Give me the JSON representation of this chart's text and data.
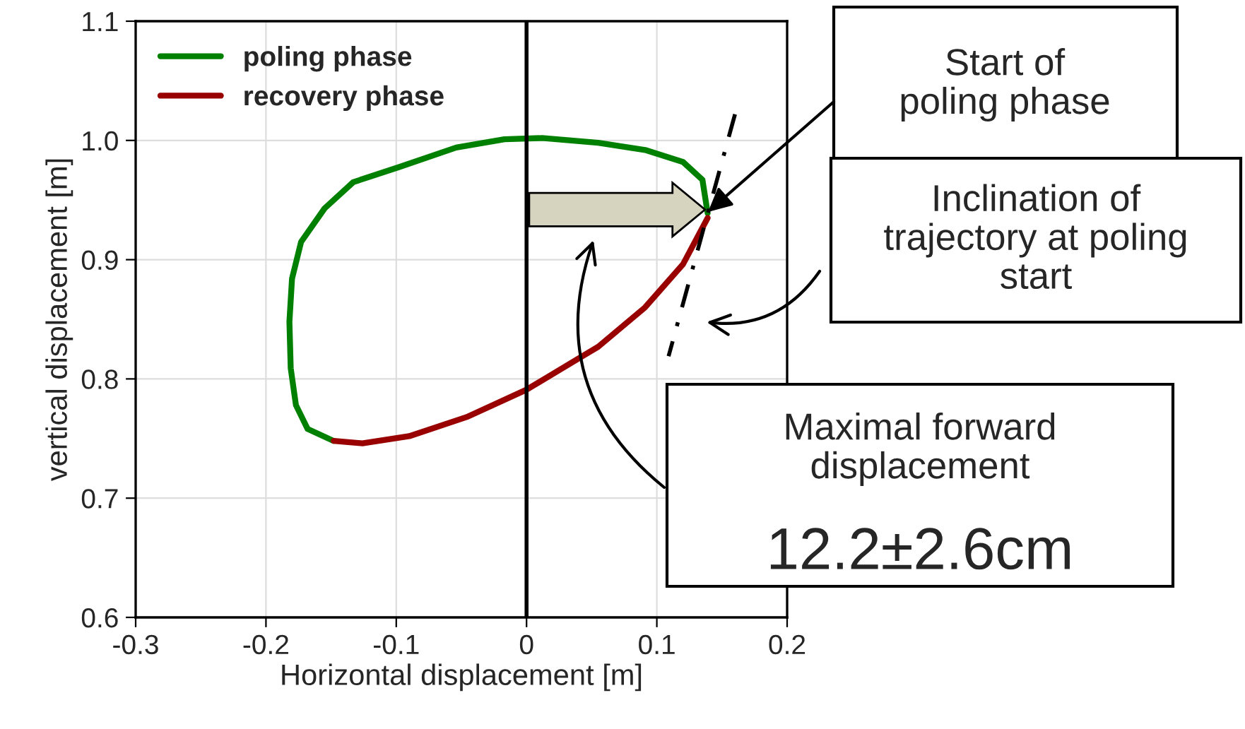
{
  "chart_data": {
    "type": "line",
    "xlabel": "Horizontal displacement [m]",
    "ylabel": "vertical displacement [m]",
    "xlim": [
      -0.3,
      0.2
    ],
    "ylim": [
      0.6,
      1.1
    ],
    "xticks": [
      -0.3,
      -0.2,
      -0.1,
      0,
      0.1,
      0.2
    ],
    "yticks": [
      0.6,
      0.7,
      0.8,
      0.9,
      {
        "value": 1,
        "label": "1.0"
      },
      1.1
    ],
    "grid": true,
    "legend": "top left",
    "series": [
      {
        "name": "poling phase",
        "color": "#008000",
        "x": [
          0.139,
          0.135,
          0.12,
          0.091,
          0.055,
          0.012,
          -0.017,
          -0.054,
          -0.097,
          -0.133,
          -0.155,
          -0.173,
          -0.18,
          -0.182,
          -0.181,
          -0.177,
          -0.168,
          -0.148
        ],
        "values": [
          0.939,
          0.967,
          0.982,
          0.992,
          0.998,
          1.002,
          1.001,
          0.994,
          0.978,
          0.965,
          0.943,
          0.915,
          0.884,
          0.848,
          0.809,
          0.778,
          0.758,
          0.748
        ]
      },
      {
        "name": "recovery phase",
        "color": "#990000",
        "x": [
          -0.148,
          -0.126,
          -0.09,
          -0.046,
          0,
          0.055,
          0.091,
          0.12,
          0.139
        ],
        "values": [
          0.748,
          0.746,
          0.752,
          0.768,
          0.791,
          0.827,
          0.86,
          0.896,
          0.935
        ]
      },
      {
        "type": "line",
        "color": "#000000",
        "line_style": "dashed",
        "x": [
          0.16,
          0.109
        ],
        "values": [
          1.022,
          0.819
        ]
      }
    ],
    "ref_lines": [
      {
        "axis": "x",
        "value": 0,
        "color": "#000000"
      }
    ],
    "annotations": [
      "Start of\npoling phase",
      "Inclination of\ntrajectory at poling\nstart",
      "Maximal forward\ndisplacement",
      "12.2±2.6cm"
    ]
  }
}
